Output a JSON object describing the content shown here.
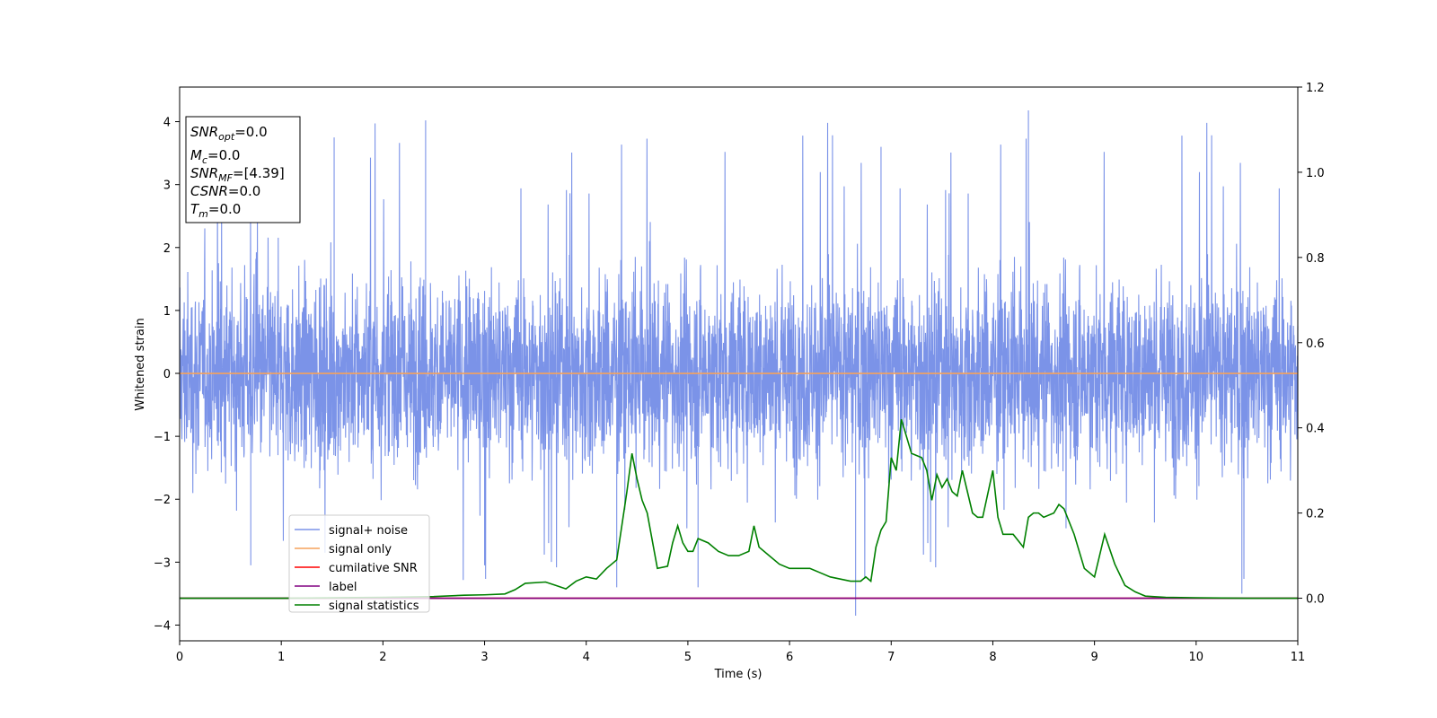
{
  "chart_data": {
    "type": "line",
    "title": "",
    "xlabel": "Time (s)",
    "ylabel": "Whitened strain",
    "xlim": [
      0,
      11
    ],
    "ylim": [
      -4.25,
      4.55
    ],
    "y2lim": [
      -0.1,
      1.2
    ],
    "x_ticks": [
      "0",
      "1",
      "2",
      "3",
      "4",
      "5",
      "6",
      "7",
      "8",
      "9",
      "10",
      "11"
    ],
    "y_ticks": [
      "4",
      "3",
      "2",
      "1",
      "0",
      "−1",
      "−2",
      "−3",
      "−4"
    ],
    "y2_ticks": [
      "1.2",
      "1.0",
      "0.8",
      "0.6",
      "0.4",
      "0.2",
      "0.0"
    ],
    "grid": false,
    "legend_position": "lower-left",
    "info_box": {
      "snr_opt": {
        "base": "SNR",
        "sub": "opt",
        "value": "=0.0"
      },
      "mc": {
        "base": "M",
        "sub": "c",
        "value": "=0.0"
      },
      "snr_mf": {
        "base": "SNR",
        "sub": "MF",
        "value": "=[4.39]"
      },
      "csnr": {
        "base": "CSNR",
        "value": "=0.0"
      },
      "tm": {
        "base": "T",
        "sub": "m",
        "value": "=0.0"
      }
    },
    "series": [
      {
        "name": "signal+ noise",
        "color": "#7b93e8",
        "axis": "left",
        "description_values": "noise, approx amplitude ±2 with spikes up to 4.2 and -3.85",
        "noise_std": 0.75
      },
      {
        "name": "signal only",
        "color": "#f5a25c",
        "axis": "left",
        "x": [
          0,
          11
        ],
        "y": [
          0,
          0
        ]
      },
      {
        "name": "cumilative SNR",
        "color": "#ff0000",
        "axis": "right",
        "x": [
          0,
          11
        ],
        "y": [
          0,
          0
        ]
      },
      {
        "name": "label",
        "color": "#800080",
        "axis": "right",
        "x": [
          0,
          11
        ],
        "y": [
          0,
          0
        ]
      },
      {
        "name": "signal statistics",
        "color": "#008000",
        "axis": "right",
        "x": [
          0,
          0.5,
          1.0,
          1.5,
          2.0,
          2.5,
          2.8,
          3.0,
          3.2,
          3.3,
          3.4,
          3.6,
          3.7,
          3.8,
          3.9,
          4.0,
          4.1,
          4.2,
          4.3,
          4.4,
          4.45,
          4.5,
          4.55,
          4.6,
          4.7,
          4.8,
          4.85,
          4.9,
          4.95,
          5.0,
          5.05,
          5.1,
          5.2,
          5.3,
          5.4,
          5.5,
          5.6,
          5.65,
          5.7,
          5.8,
          5.9,
          6.0,
          6.1,
          6.2,
          6.3,
          6.4,
          6.5,
          6.6,
          6.7,
          6.75,
          6.8,
          6.85,
          6.9,
          6.95,
          7.0,
          7.05,
          7.1,
          7.2,
          7.3,
          7.35,
          7.4,
          7.45,
          7.5,
          7.55,
          7.6,
          7.65,
          7.7,
          7.8,
          7.85,
          7.9,
          8.0,
          8.05,
          8.1,
          8.2,
          8.3,
          8.35,
          8.4,
          8.45,
          8.5,
          8.6,
          8.65,
          8.7,
          8.8,
          8.9,
          9.0,
          9.1,
          9.2,
          9.3,
          9.4,
          9.5,
          9.7,
          10.0,
          10.5,
          11.0
        ],
        "y": [
          0.0,
          0.0,
          0.0,
          0.001,
          0.002,
          0.004,
          0.007,
          0.008,
          0.01,
          0.02,
          0.035,
          0.038,
          0.03,
          0.022,
          0.04,
          0.05,
          0.045,
          0.07,
          0.09,
          0.25,
          0.34,
          0.28,
          0.23,
          0.2,
          0.07,
          0.075,
          0.13,
          0.17,
          0.13,
          0.11,
          0.11,
          0.14,
          0.13,
          0.11,
          0.1,
          0.1,
          0.11,
          0.17,
          0.12,
          0.1,
          0.08,
          0.07,
          0.07,
          0.07,
          0.06,
          0.05,
          0.045,
          0.04,
          0.04,
          0.05,
          0.04,
          0.12,
          0.16,
          0.18,
          0.33,
          0.3,
          0.42,
          0.34,
          0.33,
          0.3,
          0.23,
          0.29,
          0.26,
          0.28,
          0.25,
          0.24,
          0.3,
          0.2,
          0.19,
          0.19,
          0.3,
          0.19,
          0.15,
          0.15,
          0.12,
          0.19,
          0.2,
          0.2,
          0.19,
          0.2,
          0.22,
          0.21,
          0.15,
          0.07,
          0.05,
          0.15,
          0.08,
          0.03,
          0.015,
          0.005,
          0.002,
          0.001,
          0.0,
          0.0
        ]
      }
    ]
  }
}
